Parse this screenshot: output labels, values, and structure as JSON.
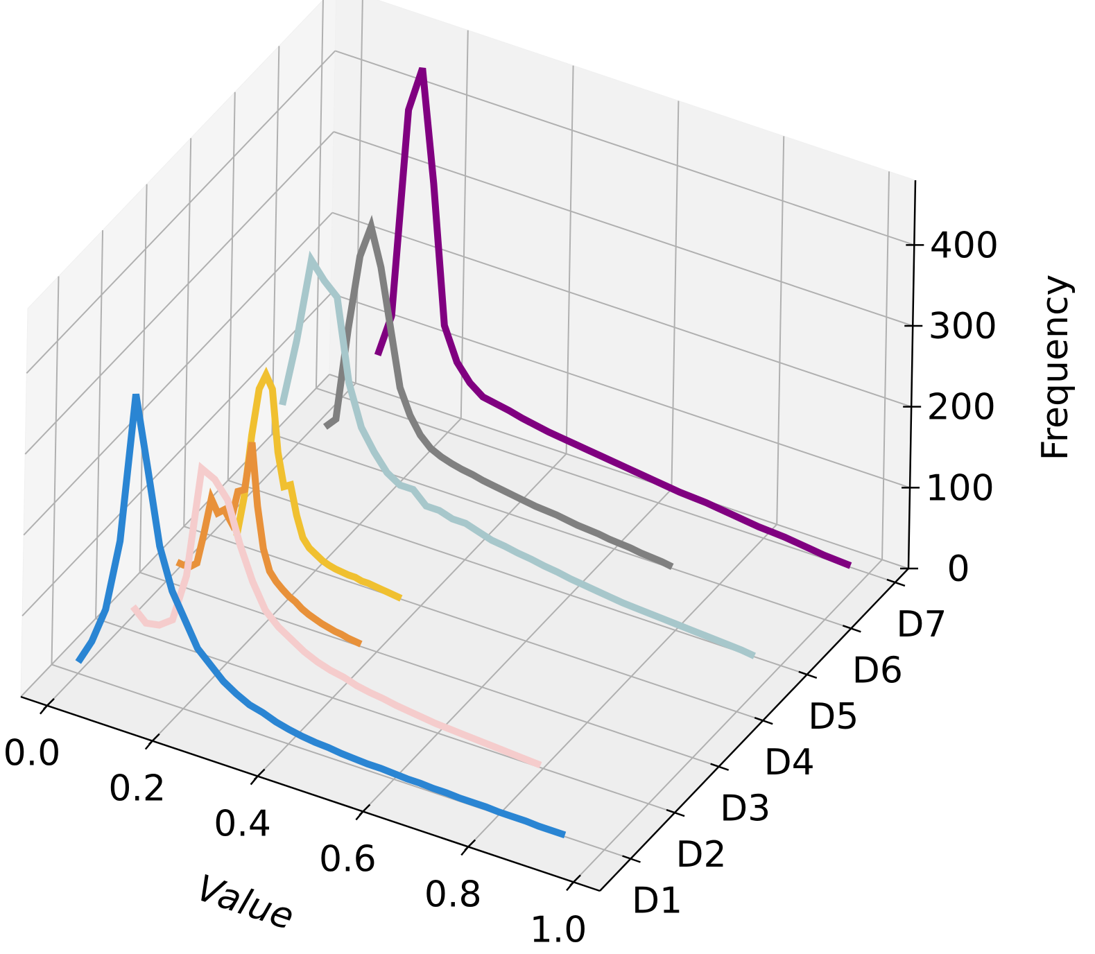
{
  "chart_data": {
    "type": "line3d",
    "xlabel": "Value",
    "zlabel": "Frequency",
    "xlim": [
      -0.05,
      1.05
    ],
    "xticks": [
      {
        "value": 0,
        "label": "0.0"
      },
      0.2,
      0.4,
      0.6,
      0.8,
      {
        "value": 1,
        "label": "1.0"
      }
    ],
    "ylim": [
      0.3,
      7.3
    ],
    "yticks": [
      {
        "value": 1,
        "label": "D1"
      },
      {
        "value": 2,
        "label": "D2"
      },
      {
        "value": 3,
        "label": "D3"
      },
      {
        "value": 4,
        "label": "D4"
      },
      {
        "value": 5,
        "label": "D5"
      },
      {
        "value": 6,
        "label": "D6"
      },
      {
        "value": 7,
        "label": "D7"
      }
    ],
    "zlim": [
      0,
      480
    ],
    "zticks": [
      0,
      100,
      200,
      300,
      400
    ],
    "grid": true,
    "series": [
      {
        "y": 1,
        "color": "#2a85d3",
        "x": [
          0,
          0.025,
          0.05,
          0.075,
          0.1,
          0.125,
          0.15,
          0.175,
          0.2,
          0.225,
          0.25,
          0.275,
          0.3,
          0.325,
          0.35,
          0.375,
          0.4,
          0.425,
          0.45,
          0.475,
          0.5,
          0.525,
          0.55,
          0.575,
          0.6,
          0.625,
          0.65,
          0.675,
          0.7,
          0.725,
          0.75,
          0.775,
          0.8,
          0.825,
          0.85,
          0.875,
          0.9,
          0.925
        ],
        "values": [
          14,
          45,
          90,
          180,
          367,
          280,
          190,
          140,
          110,
          80,
          65,
          50,
          40,
          32,
          28,
          22,
          18,
          15,
          13,
          12,
          10,
          9,
          8,
          8,
          7,
          6,
          6,
          5,
          5,
          4,
          4,
          4,
          3,
          3,
          3,
          2,
          2,
          2
        ]
      },
      {
        "y": 2,
        "color": "#f5cccc",
        "x": [
          0.02,
          0.045,
          0.07,
          0.095,
          0.12,
          0.145,
          0.17,
          0.195,
          0.22,
          0.245,
          0.27,
          0.295,
          0.32,
          0.345,
          0.37,
          0.395,
          0.42,
          0.445,
          0.47,
          0.495,
          0.52,
          0.545,
          0.57,
          0.595,
          0.62,
          0.645,
          0.67,
          0.695,
          0.72,
          0.745,
          0.77,
          0.795
        ],
        "values": [
          30,
          15,
          18,
          30,
          90,
          228,
          220,
          200,
          150,
          110,
          80,
          65,
          55,
          45,
          38,
          33,
          30,
          25,
          22,
          20,
          17,
          15,
          13,
          11,
          10,
          9,
          8,
          7,
          6,
          5,
          4,
          3
        ]
      },
      {
        "y": 3,
        "color": "#e8913a",
        "x": [
          0.02,
          0.0325,
          0.045,
          0.0575,
          0.07,
          0.0825,
          0.095,
          0.1075,
          0.12,
          0.1325,
          0.145,
          0.1575,
          0.17,
          0.1825,
          0.195,
          0.2075,
          0.22,
          0.2325,
          0.245,
          0.2575,
          0.27,
          0.2825,
          0.295,
          0.3075,
          0.32,
          0.3325,
          0.345,
          0.3575,
          0.37
        ],
        "values": [
          28,
          27,
          28,
          35,
          75,
          120,
          105,
          112,
          100,
          140,
          145,
          206,
          130,
          80,
          55,
          45,
          38,
          32,
          28,
          22,
          18,
          15,
          12,
          10,
          8,
          7,
          5,
          4,
          3
        ]
      },
      {
        "y": 4,
        "color": "#f0c030",
        "x": [
          0.05,
          0.0625,
          0.075,
          0.0875,
          0.1,
          0.1125,
          0.125,
          0.1375,
          0.15,
          0.1625,
          0.175,
          0.1875,
          0.2,
          0.2125,
          0.225,
          0.2375,
          0.25,
          0.2625,
          0.275,
          0.2875,
          0.3,
          0.3125,
          0.325,
          0.3375,
          0.35,
          0.3625
        ],
        "values": [
          10,
          60,
          140,
          200,
          220,
          205,
          130,
          90,
          95,
          60,
          35,
          25,
          20,
          15,
          12,
          10,
          9,
          8,
          8,
          6,
          6,
          5,
          4,
          3,
          2,
          1
        ]
      },
      {
        "y": 5,
        "color": "#a7c7cb",
        "x": [
          0.05,
          0.075,
          0.1,
          0.125,
          0.15,
          0.175,
          0.2,
          0.225,
          0.25,
          0.275,
          0.3,
          0.325,
          0.35,
          0.375,
          0.4,
          0.425,
          0.45,
          0.475,
          0.5,
          0.525,
          0.55,
          0.575,
          0.6,
          0.625,
          0.65,
          0.675,
          0.7,
          0.725,
          0.75,
          0.775,
          0.8,
          0.825,
          0.85,
          0.875,
          0.9,
          0.925,
          0.95
        ],
        "values": [
          115,
          200,
          305,
          285,
          270,
          170,
          120,
          95,
          75,
          65,
          65,
          50,
          50,
          45,
          45,
          40,
          35,
          33,
          30,
          28,
          25,
          23,
          20,
          18,
          16,
          14,
          12,
          11,
          10,
          9,
          8,
          7,
          6,
          5,
          4,
          3,
          1
        ]
      },
      {
        "y": 6,
        "color": "#808080",
        "x": [
          0.05,
          0.07,
          0.09,
          0.11,
          0.13,
          0.15,
          0.17,
          0.19,
          0.21,
          0.23,
          0.25,
          0.27,
          0.29,
          0.31,
          0.33,
          0.35,
          0.37,
          0.39,
          0.41,
          0.43,
          0.45,
          0.47,
          0.49,
          0.51,
          0.53,
          0.55,
          0.57,
          0.59,
          0.61,
          0.63,
          0.65,
          0.67,
          0.69,
          0.71
        ],
        "values": [
          31,
          45,
          160,
          255,
          296,
          250,
          180,
          110,
          80,
          60,
          48,
          42,
          38,
          35,
          33,
          30,
          28,
          26,
          24,
          22,
          20,
          19,
          18,
          16,
          14,
          13,
          12,
          10,
          9,
          8,
          6,
          5,
          4,
          2
        ]
      },
      {
        "y": 7,
        "color": "#800080",
        "x": [
          0.065,
          0.09,
          0.115,
          0.14,
          0.165,
          0.19,
          0.215,
          0.24,
          0.265,
          0.29,
          0.315,
          0.34,
          0.365,
          0.39,
          0.415,
          0.44,
          0.465,
          0.49,
          0.515,
          0.54,
          0.565,
          0.59,
          0.615,
          0.64,
          0.665,
          0.69,
          0.715,
          0.74,
          0.765,
          0.79,
          0.815,
          0.84,
          0.865,
          0.89,
          0.915,
          0.94,
          0.965
        ],
        "values": [
          66,
          120,
          380,
          437,
          300,
          130,
          90,
          70,
          58,
          55,
          52,
          48,
          45,
          42,
          40,
          38,
          36,
          34,
          32,
          30,
          28,
          26,
          24,
          22,
          21,
          20,
          18,
          16,
          14,
          12,
          11,
          10,
          8,
          6,
          4,
          3,
          2
        ]
      }
    ]
  }
}
